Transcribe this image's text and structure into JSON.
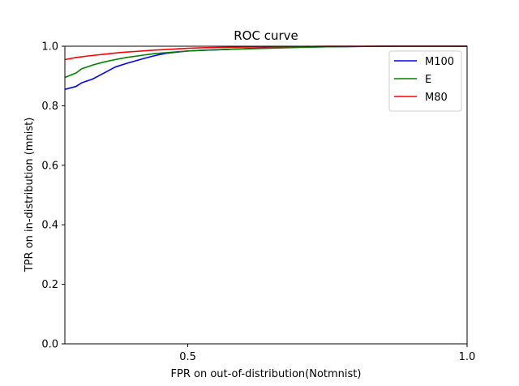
{
  "chart_data": {
    "type": "line",
    "title": "ROC curve",
    "xlabel": "FPR on out-of-distribution(Notmnist)",
    "ylabel": "TPR on in-distribution (mnist)",
    "xlim": [
      0.28,
      1.0
    ],
    "ylim": [
      0.0,
      1.0
    ],
    "xticks": [
      0.5,
      1.0
    ],
    "xtick_labels": [
      "0.5",
      "1.0"
    ],
    "yticks": [
      0.0,
      0.2,
      0.4,
      0.6,
      0.8,
      1.0
    ],
    "ytick_labels": [
      "0.0",
      "0.2",
      "0.4",
      "0.6",
      "0.8",
      "1.0"
    ],
    "grid": false,
    "legend_position": "top-right",
    "series": [
      {
        "name": "M100",
        "color": "#0000ff",
        "x": [
          0.28,
          0.3,
          0.31,
          0.33,
          0.35,
          0.37,
          0.39,
          0.42,
          0.44,
          0.46,
          0.48,
          0.5,
          0.52,
          0.55,
          0.58,
          0.62,
          0.66,
          0.7,
          0.75,
          0.8,
          0.85,
          0.9,
          0.95,
          1.0
        ],
        "y": [
          0.855,
          0.865,
          0.877,
          0.89,
          0.91,
          0.93,
          0.942,
          0.958,
          0.968,
          0.976,
          0.98,
          0.984,
          0.986,
          0.988,
          0.99,
          0.993,
          0.995,
          0.997,
          0.998,
          0.999,
          1.0,
          1.0,
          1.0,
          1.0
        ]
      },
      {
        "name": "E",
        "color": "#008000",
        "x": [
          0.28,
          0.3,
          0.31,
          0.33,
          0.35,
          0.37,
          0.39,
          0.42,
          0.44,
          0.46,
          0.48,
          0.5,
          0.52,
          0.55,
          0.58,
          0.62,
          0.66,
          0.7,
          0.75,
          0.8,
          0.85,
          0.9,
          0.95,
          1.0
        ],
        "y": [
          0.895,
          0.91,
          0.924,
          0.937,
          0.947,
          0.955,
          0.962,
          0.97,
          0.975,
          0.978,
          0.981,
          0.984,
          0.986,
          0.988,
          0.99,
          0.992,
          0.994,
          0.996,
          0.998,
          0.999,
          1.0,
          1.0,
          1.0,
          1.0
        ]
      },
      {
        "name": "M80",
        "color": "#ff0000",
        "x": [
          0.28,
          0.3,
          0.32,
          0.34,
          0.36,
          0.38,
          0.41,
          0.44,
          0.47,
          0.5,
          0.53,
          0.56,
          0.6,
          0.65,
          0.7,
          0.75,
          0.8,
          0.85,
          0.9,
          0.95,
          1.0
        ],
        "y": [
          0.955,
          0.962,
          0.967,
          0.971,
          0.975,
          0.979,
          0.983,
          0.987,
          0.99,
          0.993,
          0.995,
          0.996,
          0.997,
          0.998,
          0.999,
          1.0,
          1.0,
          1.0,
          1.0,
          1.0,
          1.0
        ]
      }
    ]
  }
}
